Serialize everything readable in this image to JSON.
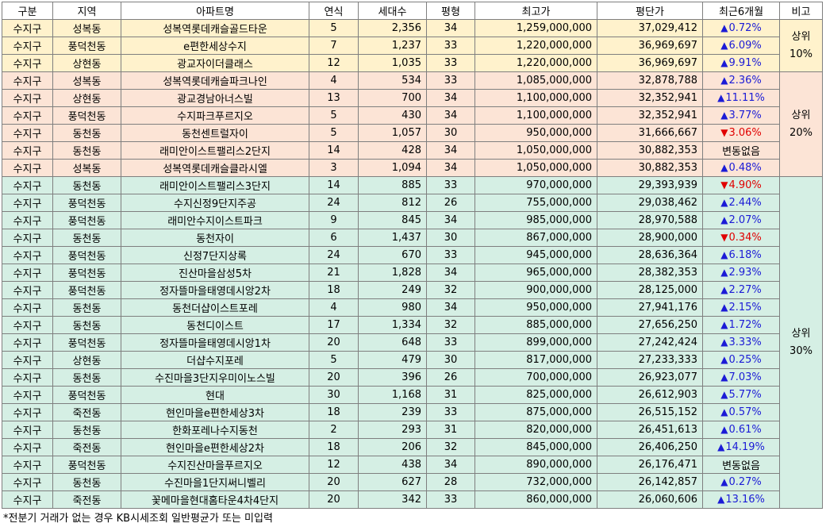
{
  "headers": [
    "구분",
    "지역",
    "아파트명",
    "연식",
    "세대수",
    "평형",
    "최고가",
    "평단가",
    "최근6개월",
    "비고"
  ],
  "groups": [
    {
      "label_line1": "상위",
      "label_line2": "10%",
      "rows": 3
    },
    {
      "label_line1": "상위",
      "label_line2": "20%",
      "rows": 6
    },
    {
      "label_line1": "상위",
      "label_line2": "30%",
      "rows": 19
    }
  ],
  "arrows": {
    "up": "▲",
    "down": "▼"
  },
  "colors": {
    "up": "#1b1bd6",
    "down": "#e00000",
    "top10": "#fff2cc",
    "top20": "#fce4d6",
    "top30": "#d5efe4"
  },
  "rows": [
    {
      "gu": "수지구",
      "dong": "성복동",
      "name": "성복역롯데캐슬골드타운",
      "year": "5",
      "households": "2,356",
      "size": "34",
      "max": "1,259,000,000",
      "ppp": "37,029,412",
      "dir": "up",
      "change": "0.72%"
    },
    {
      "gu": "수지구",
      "dong": "풍덕천동",
      "name": "e편한세상수지",
      "year": "7",
      "households": "1,237",
      "size": "33",
      "max": "1,220,000,000",
      "ppp": "36,969,697",
      "dir": "up",
      "change": "6.09%"
    },
    {
      "gu": "수지구",
      "dong": "상현동",
      "name": "광교자이더클래스",
      "year": "12",
      "households": "1,035",
      "size": "33",
      "max": "1,220,000,000",
      "ppp": "36,969,697",
      "dir": "up",
      "change": "9.91%"
    },
    {
      "gu": "수지구",
      "dong": "성복동",
      "name": "성복역롯데캐슬파크나인",
      "year": "4",
      "households": "534",
      "size": "33",
      "max": "1,085,000,000",
      "ppp": "32,878,788",
      "dir": "up",
      "change": "2.36%"
    },
    {
      "gu": "수지구",
      "dong": "상현동",
      "name": "광교경남아너스빌",
      "year": "13",
      "households": "700",
      "size": "34",
      "max": "1,100,000,000",
      "ppp": "32,352,941",
      "dir": "up",
      "change": "11.11%"
    },
    {
      "gu": "수지구",
      "dong": "풍덕천동",
      "name": "수지파크푸르지오",
      "year": "5",
      "households": "430",
      "size": "34",
      "max": "1,100,000,000",
      "ppp": "32,352,941",
      "dir": "up",
      "change": "3.77%"
    },
    {
      "gu": "수지구",
      "dong": "동천동",
      "name": "동천센트럴자이",
      "year": "5",
      "households": "1,057",
      "size": "30",
      "max": "950,000,000",
      "ppp": "31,666,667",
      "dir": "down",
      "change": "3.06%"
    },
    {
      "gu": "수지구",
      "dong": "동천동",
      "name": "래미안이스트팰리스2단지",
      "year": "14",
      "households": "428",
      "size": "34",
      "max": "1,050,000,000",
      "ppp": "30,882,353",
      "dir": "flat",
      "change": "변동없음"
    },
    {
      "gu": "수지구",
      "dong": "성복동",
      "name": "성복역롯데캐슬클라시엘",
      "year": "3",
      "households": "1,094",
      "size": "34",
      "max": "1,050,000,000",
      "ppp": "30,882,353",
      "dir": "up",
      "change": "0.48%"
    },
    {
      "gu": "수지구",
      "dong": "동천동",
      "name": "래미안이스트팰리스3단지",
      "year": "14",
      "households": "885",
      "size": "33",
      "max": "970,000,000",
      "ppp": "29,393,939",
      "dir": "down",
      "change": "4.90%"
    },
    {
      "gu": "수지구",
      "dong": "풍덕천동",
      "name": "수지신정9단지주공",
      "year": "24",
      "households": "812",
      "size": "26",
      "max": "755,000,000",
      "ppp": "29,038,462",
      "dir": "up",
      "change": "2.44%"
    },
    {
      "gu": "수지구",
      "dong": "풍덕천동",
      "name": "래미안수지이스트파크",
      "year": "9",
      "households": "845",
      "size": "34",
      "max": "985,000,000",
      "ppp": "28,970,588",
      "dir": "up",
      "change": "2.07%"
    },
    {
      "gu": "수지구",
      "dong": "동천동",
      "name": "동천자이",
      "year": "6",
      "households": "1,437",
      "size": "30",
      "max": "867,000,000",
      "ppp": "28,900,000",
      "dir": "down",
      "change": "0.34%"
    },
    {
      "gu": "수지구",
      "dong": "풍덕천동",
      "name": "신정7단지상록",
      "year": "24",
      "households": "670",
      "size": "33",
      "max": "945,000,000",
      "ppp": "28,636,364",
      "dir": "up",
      "change": "6.18%"
    },
    {
      "gu": "수지구",
      "dong": "풍덕천동",
      "name": "진산마을삼성5차",
      "year": "21",
      "households": "1,828",
      "size": "34",
      "max": "965,000,000",
      "ppp": "28,382,353",
      "dir": "up",
      "change": "2.93%"
    },
    {
      "gu": "수지구",
      "dong": "풍덕천동",
      "name": "정자뜰마을태영데시앙2차",
      "year": "18",
      "households": "249",
      "size": "32",
      "max": "900,000,000",
      "ppp": "28,125,000",
      "dir": "up",
      "change": "2.27%"
    },
    {
      "gu": "수지구",
      "dong": "동천동",
      "name": "동천더샵이스트포레",
      "year": "4",
      "households": "980",
      "size": "34",
      "max": "950,000,000",
      "ppp": "27,941,176",
      "dir": "up",
      "change": "2.15%"
    },
    {
      "gu": "수지구",
      "dong": "동천동",
      "name": "동천디이스트",
      "year": "17",
      "households": "1,334",
      "size": "32",
      "max": "885,000,000",
      "ppp": "27,656,250",
      "dir": "up",
      "change": "1.72%"
    },
    {
      "gu": "수지구",
      "dong": "풍덕천동",
      "name": "정자뜰마을태영데시앙1차",
      "year": "20",
      "households": "648",
      "size": "33",
      "max": "899,000,000",
      "ppp": "27,242,424",
      "dir": "up",
      "change": "3.33%"
    },
    {
      "gu": "수지구",
      "dong": "상현동",
      "name": "더샵수지포레",
      "year": "5",
      "households": "479",
      "size": "30",
      "max": "817,000,000",
      "ppp": "27,233,333",
      "dir": "up",
      "change": "0.25%"
    },
    {
      "gu": "수지구",
      "dong": "동천동",
      "name": "수진마을3단지우미이노스빌",
      "year": "20",
      "households": "396",
      "size": "26",
      "max": "700,000,000",
      "ppp": "26,923,077",
      "dir": "up",
      "change": "7.03%"
    },
    {
      "gu": "수지구",
      "dong": "풍덕천동",
      "name": "현대",
      "year": "30",
      "households": "1,168",
      "size": "31",
      "max": "825,000,000",
      "ppp": "26,612,903",
      "dir": "up",
      "change": "5.77%"
    },
    {
      "gu": "수지구",
      "dong": "죽전동",
      "name": "현인마을e편한세상3차",
      "year": "18",
      "households": "239",
      "size": "33",
      "max": "875,000,000",
      "ppp": "26,515,152",
      "dir": "up",
      "change": "0.57%"
    },
    {
      "gu": "수지구",
      "dong": "동천동",
      "name": "한화포레나수지동천",
      "year": "2",
      "households": "293",
      "size": "31",
      "max": "820,000,000",
      "ppp": "26,451,613",
      "dir": "up",
      "change": "0.61%"
    },
    {
      "gu": "수지구",
      "dong": "죽전동",
      "name": "현인마을e편한세상2차",
      "year": "18",
      "households": "206",
      "size": "32",
      "max": "845,000,000",
      "ppp": "26,406,250",
      "dir": "up",
      "change": "14.19%"
    },
    {
      "gu": "수지구",
      "dong": "풍덕천동",
      "name": "수지진산마을푸르지오",
      "year": "12",
      "households": "438",
      "size": "34",
      "max": "890,000,000",
      "ppp": "26,176,471",
      "dir": "flat",
      "change": "변동없음"
    },
    {
      "gu": "수지구",
      "dong": "동천동",
      "name": "수진마을1단지써니벨리",
      "year": "20",
      "households": "627",
      "size": "28",
      "max": "732,000,000",
      "ppp": "26,142,857",
      "dir": "up",
      "change": "0.27%"
    },
    {
      "gu": "수지구",
      "dong": "죽전동",
      "name": "꽃메마을현대홈타운4차4단지",
      "year": "20",
      "households": "342",
      "size": "33",
      "max": "860,000,000",
      "ppp": "26,060,606",
      "dir": "up",
      "change": "13.16%"
    }
  ],
  "footnote": "*전분기 거래가 없는 경우 KB시세조회 일반평균가 또는 미입력"
}
